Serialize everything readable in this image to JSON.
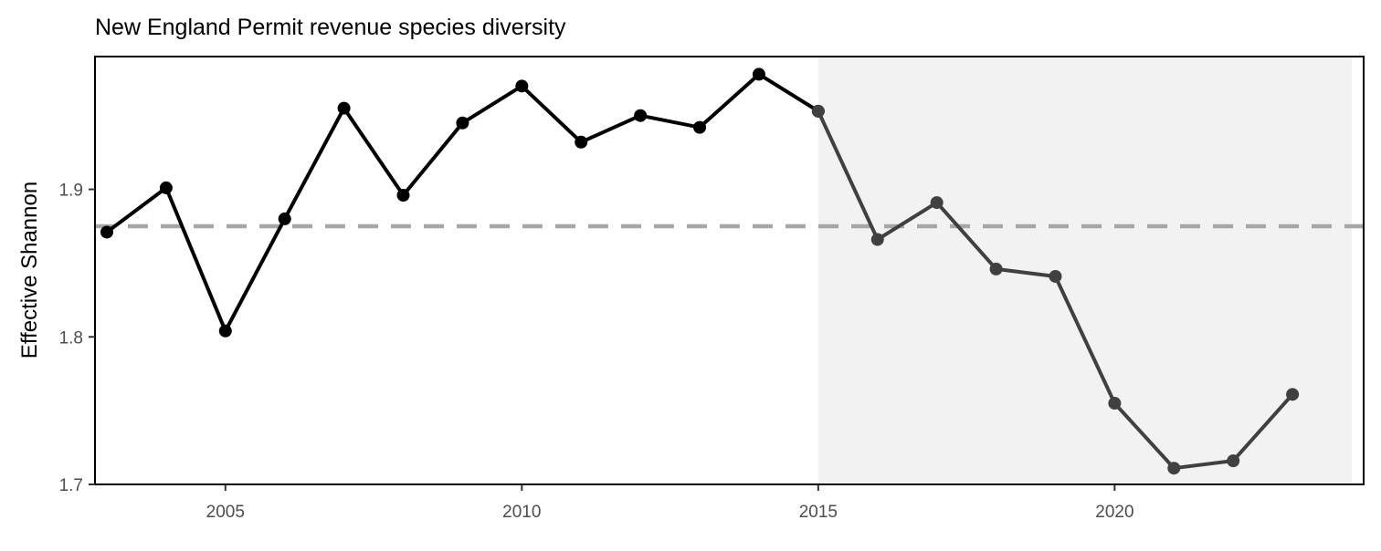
{
  "chart_data": {
    "type": "line",
    "title": "New England Permit revenue species diversity",
    "xlabel": "",
    "ylabel": "Effective Shannon",
    "xlim": [
      2002.8,
      2024.2
    ],
    "ylim": [
      1.7,
      1.99
    ],
    "x_ticks": [
      2005,
      2010,
      2015,
      2020
    ],
    "y_ticks": [
      1.7,
      1.8,
      1.9
    ],
    "grid": false,
    "shaded_region": {
      "x_start": 2015,
      "x_end": 2024,
      "color": "#f2f2f2"
    },
    "reference_line": {
      "y": 1.875,
      "style": "dashed",
      "color": "#a6a6a6"
    },
    "series": [
      {
        "color": "#000000",
        "x": [
          2003,
          2004,
          2005,
          2006,
          2007,
          2008,
          2009,
          2010,
          2011,
          2012,
          2013,
          2014,
          2015
        ],
        "y": [
          1.871,
          1.901,
          1.804,
          1.88,
          1.955,
          1.896,
          1.945,
          1.97,
          1.932,
          1.95,
          1.942,
          1.978,
          1.953
        ]
      },
      {
        "color": "#404040",
        "x": [
          2015,
          2016,
          2017,
          2018,
          2019,
          2020,
          2021,
          2022,
          2023
        ],
        "y": [
          1.953,
          1.866,
          1.891,
          1.846,
          1.841,
          1.755,
          1.711,
          1.716,
          1.761
        ]
      }
    ]
  }
}
